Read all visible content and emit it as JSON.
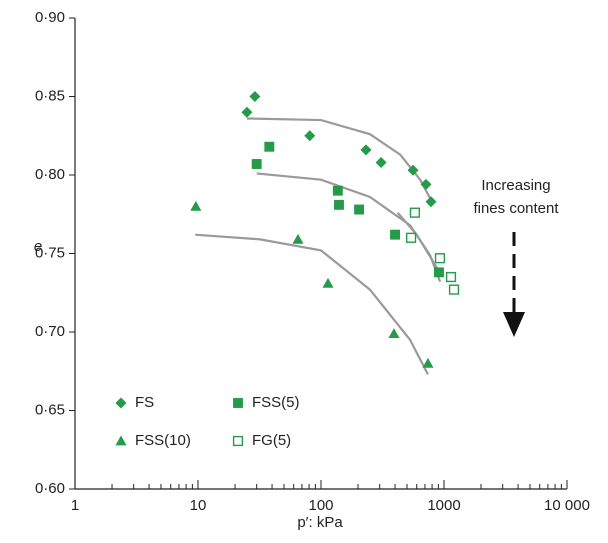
{
  "chart_data": {
    "type": "scatter",
    "x_label": "p′: kPa",
    "y_label": "e",
    "annotation": [
      "Increasing",
      "fines content"
    ],
    "log_x": true,
    "xlim": [
      1,
      10000
    ],
    "ylim": [
      0.6,
      0.9
    ],
    "xticks": [
      1,
      10,
      100,
      1000,
      {
        "value": 10000,
        "label": "10 000"
      }
    ],
    "yticks": [
      {
        "value": 0.6,
        "label": "0·60"
      },
      {
        "value": 0.65,
        "label": "0·65"
      },
      {
        "value": 0.7,
        "label": "0·70"
      },
      {
        "value": 0.75,
        "label": "0·75"
      },
      {
        "value": 0.8,
        "label": "0·80"
      },
      {
        "value": 0.85,
        "label": "0·85"
      },
      {
        "value": 0.9,
        "label": "0·90"
      }
    ],
    "series": [
      {
        "name": "FS",
        "color": "#239b48",
        "marker": "diamond",
        "x": [
          25,
          29,
          81,
          232,
          308,
          560,
          714,
          784
        ],
        "values": [
          0.84,
          0.85,
          0.825,
          0.816,
          0.808,
          0.803,
          0.794,
          0.783
        ]
      },
      {
        "name": "FSS(5)",
        "color": "#239b48",
        "marker": "square",
        "x": [
          30,
          38,
          137,
          140,
          204,
          400,
          910
        ],
        "values": [
          0.807,
          0.818,
          0.79,
          0.781,
          0.778,
          0.762,
          0.738
        ]
      },
      {
        "name": "FSS(10)",
        "color": "#239b48",
        "marker": "triangle",
        "x": [
          9.6,
          65,
          114,
          392,
          741
        ],
        "values": [
          0.78,
          0.759,
          0.731,
          0.699,
          0.68
        ]
      },
      {
        "name": "FG(5)",
        "color": "#239b48",
        "marker": "open-square",
        "x": [
          580,
          540,
          927,
          1140,
          1206
        ],
        "values": [
          0.776,
          0.76,
          0.747,
          0.735,
          0.727
        ]
      }
    ],
    "curves": [
      {
        "color": "#9a9a9a",
        "x": [
          25,
          100,
          250,
          440,
          640,
          810
        ],
        "values": [
          0.836,
          0.835,
          0.826,
          0.813,
          0.797,
          0.782
        ]
      },
      {
        "color": "#9a9a9a",
        "x": [
          30,
          100,
          250,
          530,
          770,
          930
        ],
        "values": [
          0.801,
          0.797,
          0.786,
          0.768,
          0.749,
          0.732
        ]
      },
      {
        "color": "#9a9a9a",
        "x": [
          420,
          600,
          890
        ],
        "values": [
          0.776,
          0.762,
          0.74
        ]
      },
      {
        "color": "#9a9a9a",
        "x": [
          9.5,
          32,
          100,
          250,
          530,
          740
        ],
        "values": [
          0.762,
          0.759,
          0.752,
          0.727,
          0.695,
          0.673
        ]
      }
    ]
  }
}
